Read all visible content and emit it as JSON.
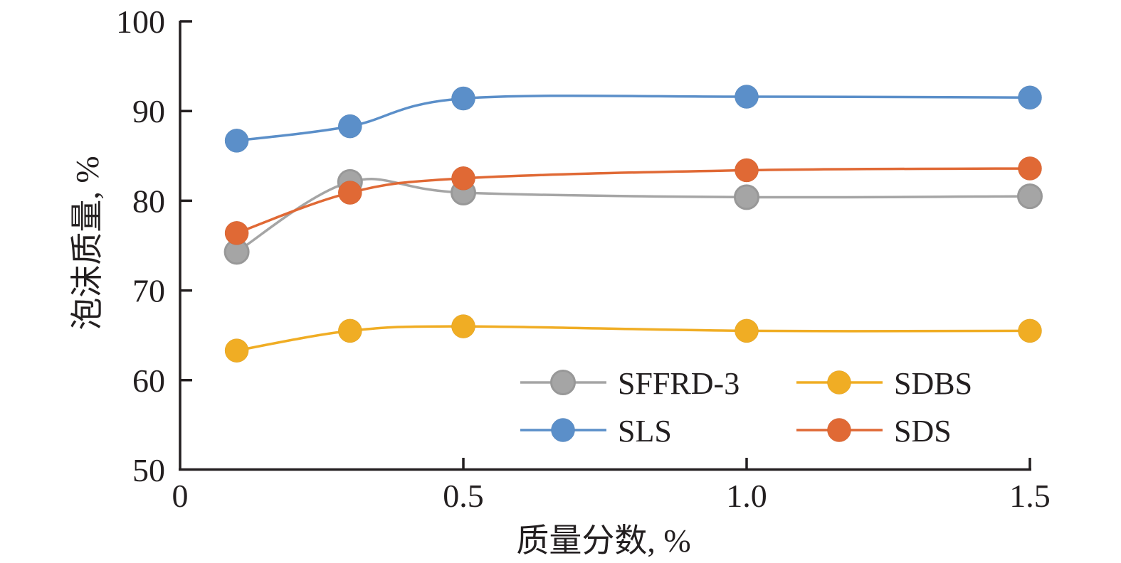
{
  "chart_data": {
    "type": "line",
    "title": "",
    "xlabel": "质量分数, %",
    "ylabel": "泡沫质量, %",
    "xlim": [
      0,
      1.5
    ],
    "ylim": [
      50,
      100
    ],
    "x_ticks": [
      0,
      0.5,
      1.0,
      1.5
    ],
    "x_tick_labels": [
      "0",
      "0.5",
      "1.0",
      "1.5"
    ],
    "y_ticks": [
      50,
      60,
      70,
      80,
      90,
      100
    ],
    "y_tick_labels": [
      "50",
      "60",
      "70",
      "80",
      "90",
      "100"
    ],
    "grid": false,
    "smooth": true,
    "legend_position": "bottom-right",
    "x": [
      0.1,
      0.3,
      0.5,
      1.0,
      1.5
    ],
    "series": [
      {
        "name": "SFFRD-3",
        "color": "#A5A5A5",
        "values": [
          74.3,
          82.1,
          80.9,
          80.4,
          80.5
        ]
      },
      {
        "name": "SDBS",
        "color": "#F0AD24",
        "values": [
          63.3,
          65.5,
          66.0,
          65.5,
          65.5
        ]
      },
      {
        "name": "SLS",
        "color": "#5B8FC9",
        "values": [
          86.7,
          88.3,
          91.4,
          91.6,
          91.5
        ]
      },
      {
        "name": "SDS",
        "color": "#E06935",
        "values": [
          76.4,
          80.9,
          82.5,
          83.4,
          83.6
        ]
      }
    ]
  }
}
